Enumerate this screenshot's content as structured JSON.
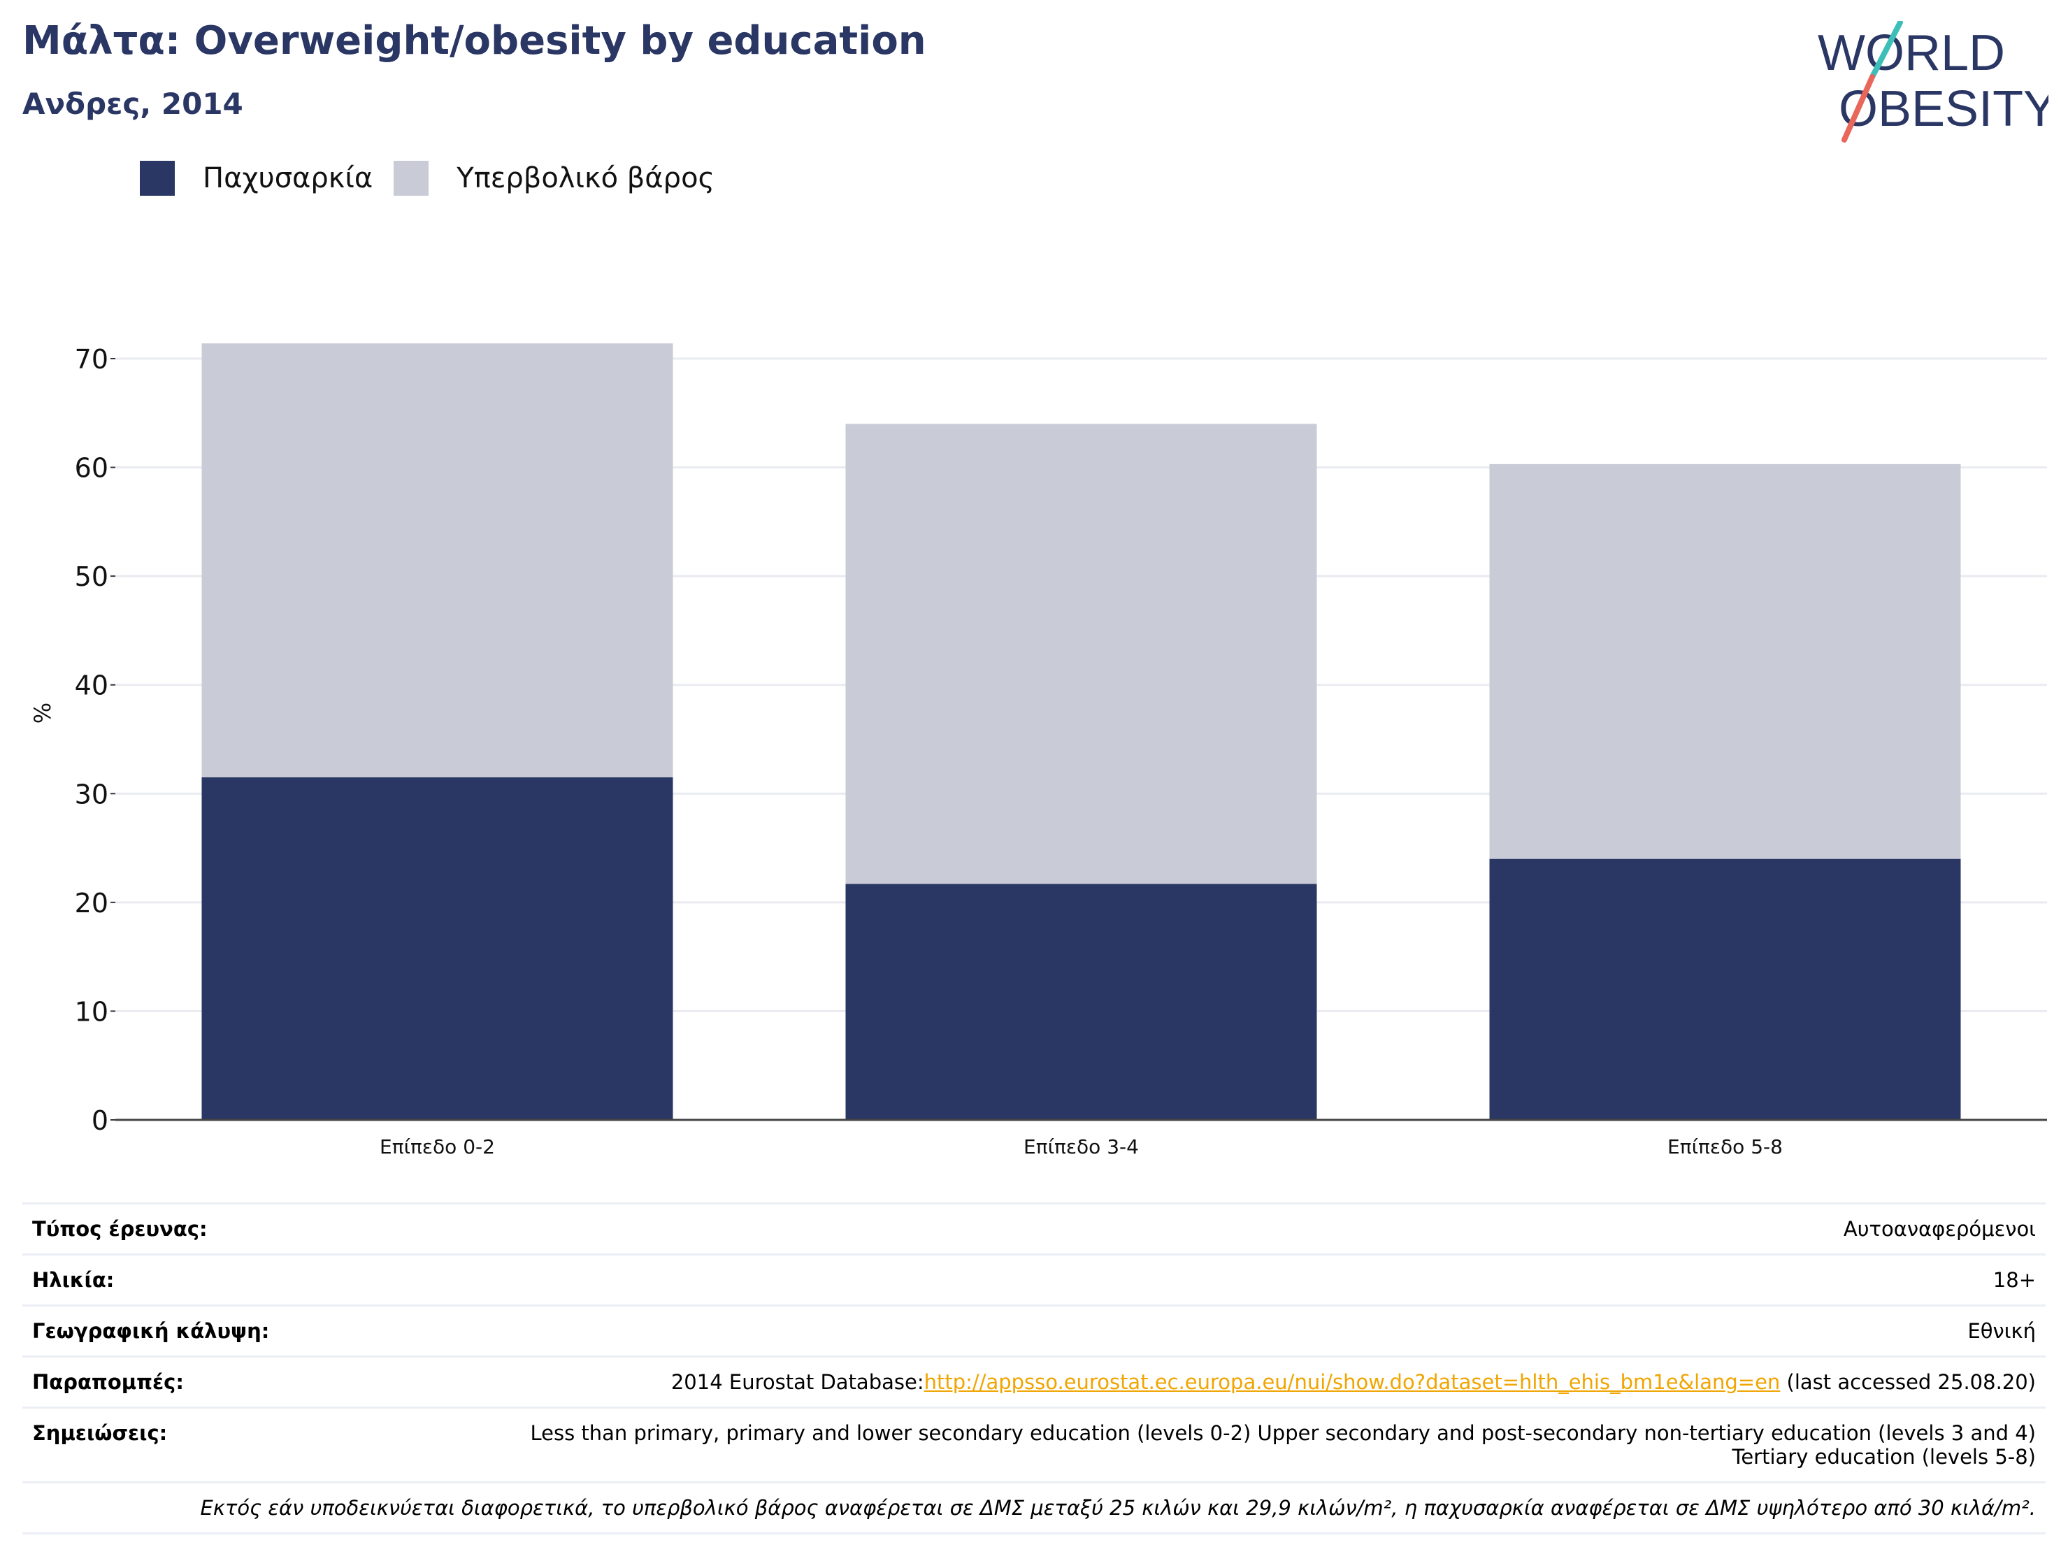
{
  "header": {
    "title": "Μάλτα: Overweight/obesity by education",
    "subtitle": "Ανδρες, 2014"
  },
  "logo": {
    "line1": "WORLD",
    "line2": "OBESITY",
    "colors": {
      "text": "#2a3663",
      "slash_top": "#3dbfb8",
      "slash_bottom": "#e8665a"
    }
  },
  "legend": [
    {
      "label": "Παχυσαρκία",
      "color": "#2a3663"
    },
    {
      "label": "Υπερβολικό βάρος",
      "color": "#c9cbd7"
    }
  ],
  "chart_data": {
    "type": "bar",
    "stacked": true,
    "categories": [
      "Επίπεδο 0-2",
      "Επίπεδο 3-4",
      "Επίπεδο 5-8"
    ],
    "series": [
      {
        "name": "Παχυσαρκία",
        "color": "#2a3663",
        "values": [
          31.5,
          21.7,
          24.0
        ]
      },
      {
        "name": "Υπερβολικό βάρος",
        "color": "#c9cbd7",
        "values": [
          39.9,
          42.3,
          36.3
        ]
      }
    ],
    "ylabel": "%",
    "xlabel": "",
    "ylim": [
      0,
      70
    ],
    "yticks": [
      0,
      10,
      20,
      30,
      40,
      50,
      60,
      70
    ],
    "grid": true,
    "legend_position": "top-left"
  },
  "info": {
    "rows": [
      {
        "key": "Τύπος έρευνας:",
        "value": "Αυτοαναφερόμενοι"
      },
      {
        "key": "Ηλικία:",
        "value": "18+"
      },
      {
        "key": "Γεωγραφική κάλυψη:",
        "value": "Εθνική"
      },
      {
        "key": "Παραπομπές:",
        "value_prefix": "2014 Eurostat Database:",
        "link": "http://appsso.eurostat.ec.europa.eu/nui/show.do?dataset=hlth_ehis_bm1e&lang=en",
        "value_suffix": " (last accessed 25.08.20)"
      },
      {
        "key": "Σημειώσεις:",
        "value": "Less than primary, primary and lower secondary education (levels 0-2) Upper secondary and post-secondary non-tertiary education (levels 3 and 4) Tertiary education (levels 5-8)"
      }
    ],
    "footnote": "Εκτός εάν υποδεικνύεται διαφορετικά, το υπερβολικό βάρος αναφέρεται σε ΔΜΣ μεταξύ 25 κιλών και 29,9 κιλών/m², η παχυσαρκία αναφέρεται σε ΔΜΣ υψηλότερο από 30 κιλά/m²."
  }
}
